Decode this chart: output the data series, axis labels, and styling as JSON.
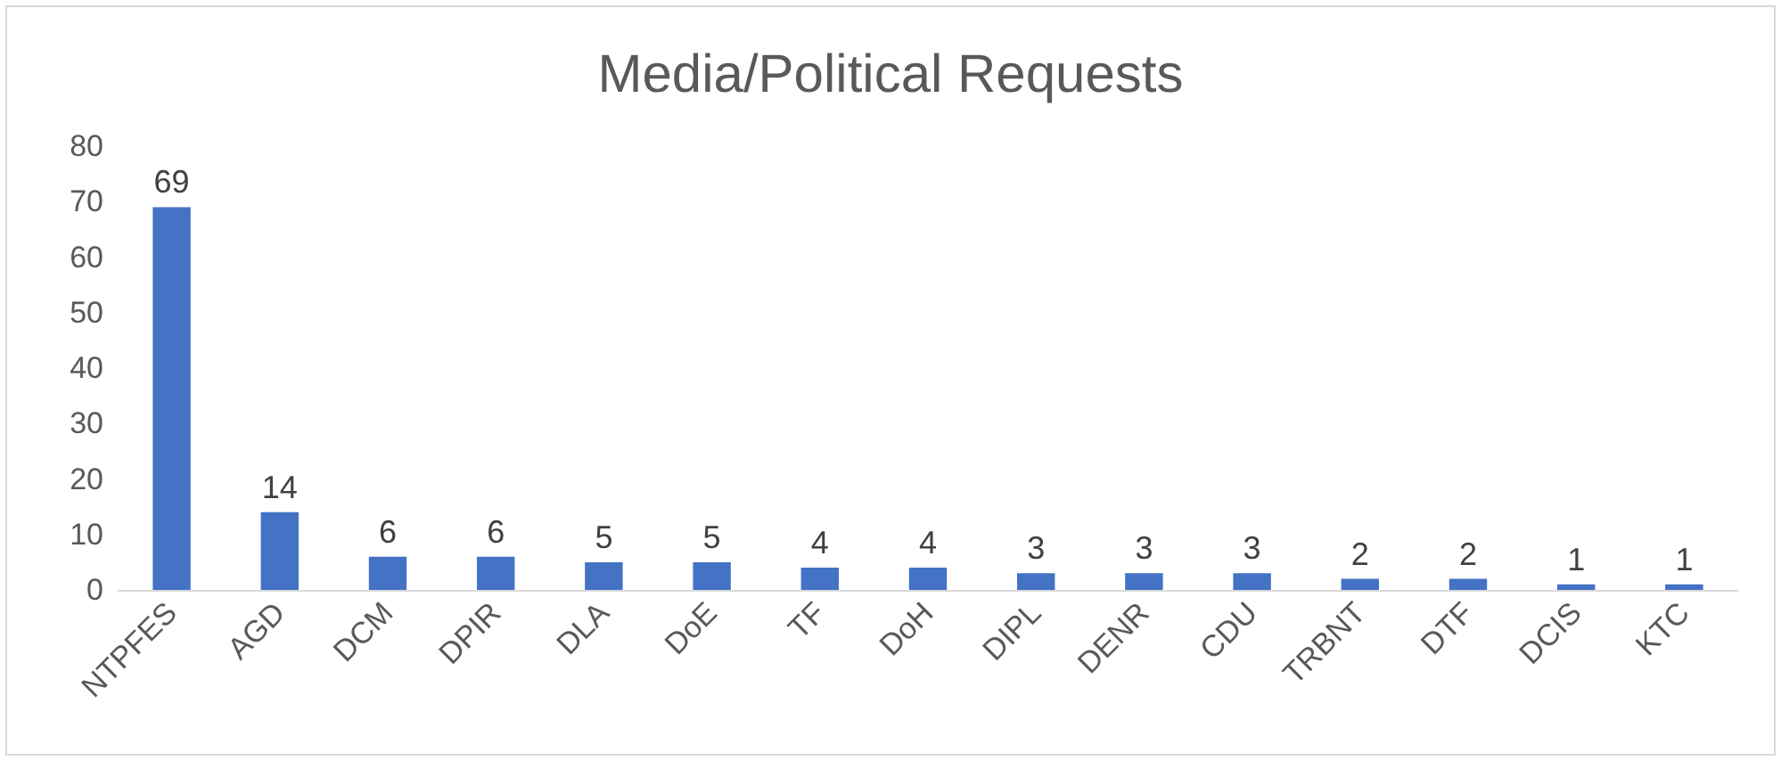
{
  "chart_data": {
    "type": "bar",
    "title": "Media/Political Requests",
    "categories": [
      "NTPFES",
      "AGD",
      "DCM",
      "DPIR",
      "DLA",
      "DoE",
      "TF",
      "DoH",
      "DIPL",
      "DENR",
      "CDU",
      "TRBNT",
      "DTF",
      "DCIS",
      "KTC"
    ],
    "values": [
      69,
      14,
      6,
      6,
      5,
      5,
      4,
      4,
      3,
      3,
      3,
      2,
      2,
      1,
      1
    ],
    "color": "#4472c4",
    "ylim": [
      0,
      80
    ],
    "yticks": [
      0,
      10,
      20,
      30,
      40,
      50,
      60,
      70,
      80
    ],
    "data_labels": true,
    "grid": false
  }
}
